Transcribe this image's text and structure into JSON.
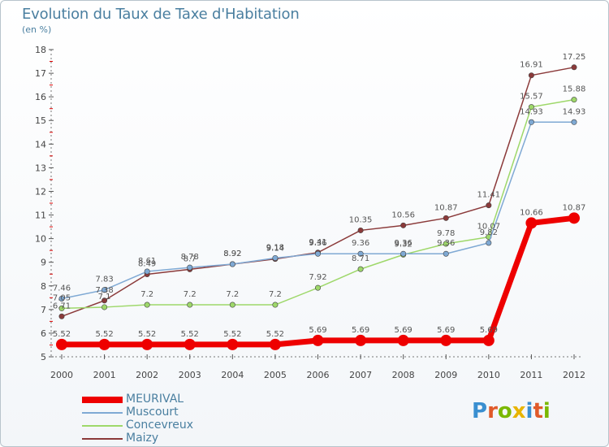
{
  "header": {
    "title": "Evolution du Taux de Taxe d'Habitation",
    "unit": "(en %)"
  },
  "logo": {
    "text": "Proxiti",
    "colors": [
      "#3a8fd0",
      "#e05a2a",
      "#7ab800",
      "#e8b400",
      "#3a8fd0",
      "#e05a2a",
      "#7ab800"
    ]
  },
  "chart_data": {
    "type": "line",
    "title": "Evolution du Taux de Taxe d'Habitation",
    "ylabel": "(en %)",
    "xlabel": "",
    "x": [
      "2000",
      "2001",
      "2002",
      "2003",
      "2004",
      "2005",
      "2006",
      "2007",
      "2008",
      "2009",
      "2010",
      "2011",
      "2012"
    ],
    "ylim": [
      5,
      18
    ],
    "yticks": [
      5,
      6,
      7,
      8,
      9,
      10,
      11,
      12,
      13,
      14,
      15,
      16,
      17,
      18
    ],
    "grid": false,
    "legend_position": "bottom-left",
    "series": [
      {
        "name": "MEURIVAL",
        "color": "#ee0000",
        "values": [
          5.52,
          5.52,
          5.52,
          5.52,
          5.52,
          5.52,
          5.69,
          5.69,
          5.69,
          5.69,
          5.69,
          10.66,
          10.87
        ],
        "labels": [
          "5.52",
          "5.52",
          "5.52",
          "5.52",
          "5.52",
          "5.52",
          "5.69",
          "5.69",
          "5.69",
          "5.69",
          "5.69",
          "10.66",
          "10.87"
        ]
      },
      {
        "name": "Muscourt",
        "color": "#7fa9d4",
        "values": [
          7.46,
          7.83,
          8.61,
          8.78,
          8.92,
          9.18,
          9.36,
          9.36,
          9.36,
          9.36,
          9.82,
          14.93,
          14.93
        ],
        "labels": [
          "7.46",
          "7.83",
          "8.61",
          "8.78",
          "8.92",
          "9.18",
          "9.36",
          "9.36",
          "9.36",
          "9.36",
          "9.82",
          "14.93",
          "14.93"
        ]
      },
      {
        "name": "Concevreux",
        "color": "#9ed86a",
        "values": [
          7.05,
          7.1,
          7.2,
          7.2,
          7.2,
          7.2,
          7.92,
          8.71,
          9.32,
          9.78,
          10.07,
          15.57,
          15.88
        ],
        "labels": [
          "7.05",
          "7.1",
          "7.2",
          "7.2",
          "7.2",
          "7.2",
          "7.92",
          "8.71",
          "9.32",
          "9.78",
          "10.07",
          "15.57",
          "15.88"
        ]
      },
      {
        "name": "Maizy",
        "color": "#8b3a3a",
        "values": [
          6.71,
          7.38,
          8.49,
          8.7,
          8.92,
          9.14,
          9.41,
          10.35,
          10.56,
          10.87,
          11.41,
          16.91,
          17.25
        ],
        "labels": [
          "6.71",
          "7.38",
          "8.49",
          "8.7",
          "8.92",
          "9.14",
          "9.41",
          "10.35",
          "10.56",
          "10.87",
          "11.41",
          "16.91",
          "17.25"
        ]
      }
    ]
  }
}
